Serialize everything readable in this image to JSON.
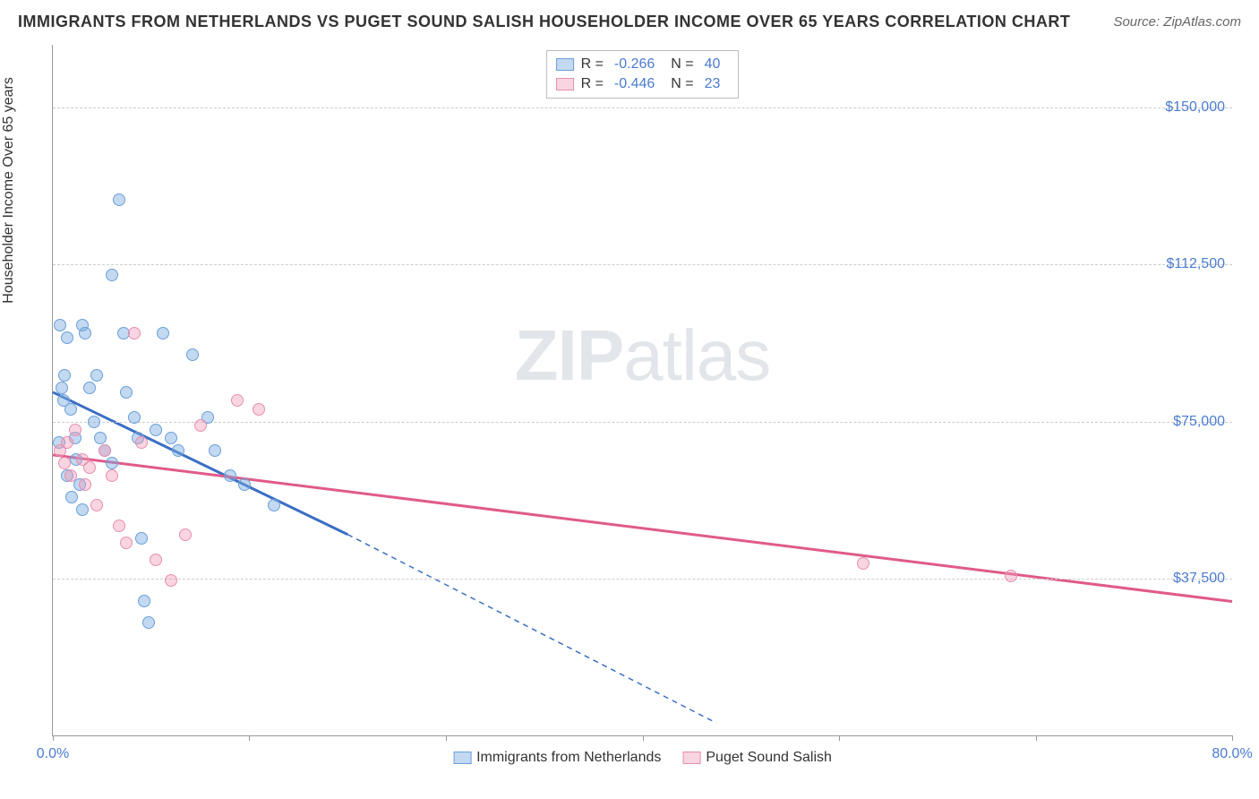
{
  "header": {
    "title": "IMMIGRANTS FROM NETHERLANDS VS PUGET SOUND SALISH HOUSEHOLDER INCOME OVER 65 YEARS CORRELATION CHART",
    "source": "Source: ZipAtlas.com"
  },
  "chart": {
    "type": "scatter",
    "ylabel": "Householder Income Over 65 years",
    "watermark_a": "ZIP",
    "watermark_b": "atlas",
    "xlim": [
      0,
      80
    ],
    "ylim": [
      0,
      165000
    ],
    "x_unit": "%",
    "y_prefix": "$",
    "background_color": "#ffffff",
    "grid_color": "#cccccc",
    "axis_color": "#999999",
    "xticks": [
      {
        "x": 0,
        "label": "0.0%"
      },
      {
        "x": 13.33,
        "label": ""
      },
      {
        "x": 26.67,
        "label": ""
      },
      {
        "x": 40,
        "label": ""
      },
      {
        "x": 53.33,
        "label": ""
      },
      {
        "x": 66.67,
        "label": ""
      },
      {
        "x": 80,
        "label": "80.0%"
      }
    ],
    "yticks": [
      {
        "y": 37500,
        "label": "$37,500"
      },
      {
        "y": 75000,
        "label": "$75,000"
      },
      {
        "y": 112500,
        "label": "$112,500"
      },
      {
        "y": 150000,
        "label": "$150,000"
      }
    ],
    "series": [
      {
        "id": "netherlands",
        "name": "Immigrants from Netherlands",
        "fill_color": "rgba(120,170,225,0.45)",
        "stroke_color": "#6c9fd8",
        "line_color": "#3b6fc4",
        "R_label": "R =",
        "R": "-0.266",
        "N_label": "N =",
        "N": "40",
        "trend": {
          "x1": 0,
          "y1": 82000,
          "x2_solid": 20,
          "y2_solid": 48000,
          "x2_dash": 45,
          "y2_dash": 3000
        },
        "points": [
          {
            "x": 0.5,
            "y": 98000
          },
          {
            "x": 0.6,
            "y": 83000
          },
          {
            "x": 0.7,
            "y": 80000
          },
          {
            "x": 0.8,
            "y": 86000
          },
          {
            "x": 1.0,
            "y": 95000
          },
          {
            "x": 1.2,
            "y": 78000
          },
          {
            "x": 1.5,
            "y": 71000
          },
          {
            "x": 1.6,
            "y": 66000
          },
          {
            "x": 1.8,
            "y": 60000
          },
          {
            "x": 2.0,
            "y": 98000
          },
          {
            "x": 2.2,
            "y": 96000
          },
          {
            "x": 2.5,
            "y": 83000
          },
          {
            "x": 2.8,
            "y": 75000
          },
          {
            "x": 3.0,
            "y": 86000
          },
          {
            "x": 3.2,
            "y": 71000
          },
          {
            "x": 3.5,
            "y": 68000
          },
          {
            "x": 4.0,
            "y": 110000
          },
          {
            "x": 4.0,
            "y": 65000
          },
          {
            "x": 4.5,
            "y": 128000
          },
          {
            "x": 4.8,
            "y": 96000
          },
          {
            "x": 5.0,
            "y": 82000
          },
          {
            "x": 5.5,
            "y": 76000
          },
          {
            "x": 5.8,
            "y": 71000
          },
          {
            "x": 6.0,
            "y": 47000
          },
          {
            "x": 6.2,
            "y": 32000
          },
          {
            "x": 6.5,
            "y": 27000
          },
          {
            "x": 7.0,
            "y": 73000
          },
          {
            "x": 7.5,
            "y": 96000
          },
          {
            "x": 8.0,
            "y": 71000
          },
          {
            "x": 8.5,
            "y": 68000
          },
          {
            "x": 9.5,
            "y": 91000
          },
          {
            "x": 10.5,
            "y": 76000
          },
          {
            "x": 11.0,
            "y": 68000
          },
          {
            "x": 12.0,
            "y": 62000
          },
          {
            "x": 13.0,
            "y": 60000
          },
          {
            "x": 15.0,
            "y": 55000
          },
          {
            "x": 1.0,
            "y": 62000
          },
          {
            "x": 1.3,
            "y": 57000
          },
          {
            "x": 2.0,
            "y": 54000
          },
          {
            "x": 0.4,
            "y": 70000
          }
        ]
      },
      {
        "id": "salish",
        "name": "Puget Sound Salish",
        "fill_color": "rgba(240,150,180,0.40)",
        "stroke_color": "#e68fb0",
        "line_color": "#e05a8a",
        "R_label": "R =",
        "R": "-0.446",
        "N_label": "N =",
        "N": "23",
        "trend": {
          "x1": 0,
          "y1": 67000,
          "x2_solid": 80,
          "y2_solid": 32000,
          "x2_dash": 80,
          "y2_dash": 32000
        },
        "points": [
          {
            "x": 0.5,
            "y": 68000
          },
          {
            "x": 0.8,
            "y": 65000
          },
          {
            "x": 1.0,
            "y": 70000
          },
          {
            "x": 1.2,
            "y": 62000
          },
          {
            "x": 1.5,
            "y": 73000
          },
          {
            "x": 2.0,
            "y": 66000
          },
          {
            "x": 2.2,
            "y": 60000
          },
          {
            "x": 2.5,
            "y": 64000
          },
          {
            "x": 3.0,
            "y": 55000
          },
          {
            "x": 3.5,
            "y": 68000
          },
          {
            "x": 4.0,
            "y": 62000
          },
          {
            "x": 4.5,
            "y": 50000
          },
          {
            "x": 5.0,
            "y": 46000
          },
          {
            "x": 5.5,
            "y": 96000
          },
          {
            "x": 6.0,
            "y": 70000
          },
          {
            "x": 7.0,
            "y": 42000
          },
          {
            "x": 8.0,
            "y": 37000
          },
          {
            "x": 9.0,
            "y": 48000
          },
          {
            "x": 10.0,
            "y": 74000
          },
          {
            "x": 12.5,
            "y": 80000
          },
          {
            "x": 14.0,
            "y": 78000
          },
          {
            "x": 55.0,
            "y": 41000
          },
          {
            "x": 65.0,
            "y": 38000
          }
        ]
      }
    ]
  }
}
